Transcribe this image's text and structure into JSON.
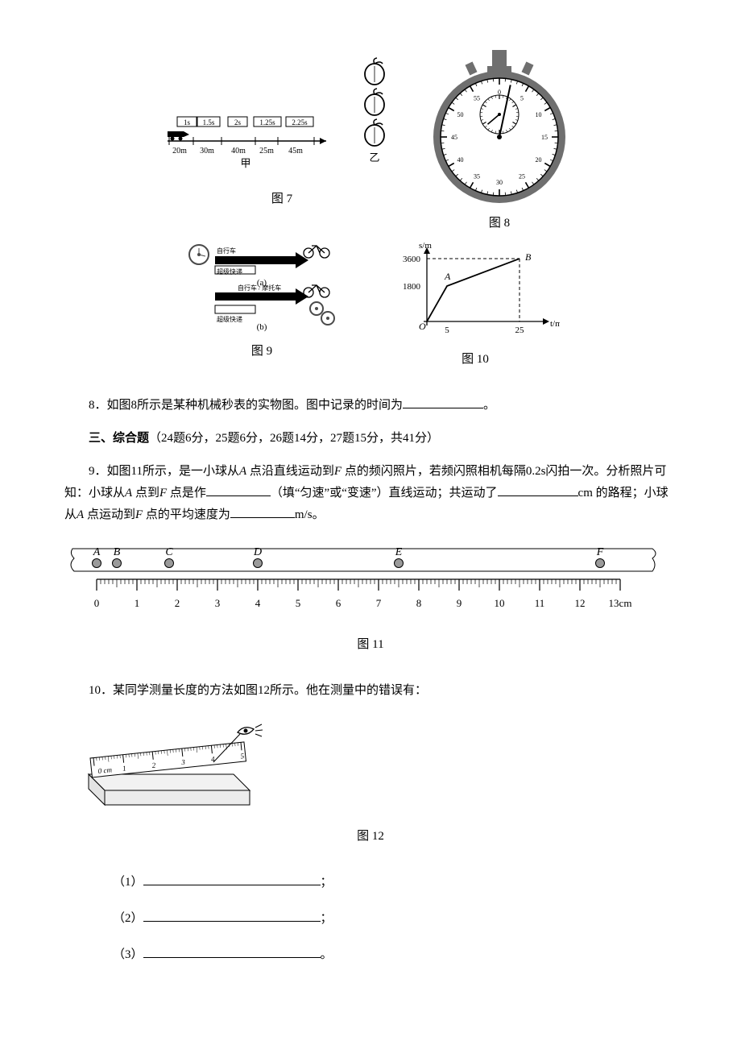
{
  "fig7": {
    "caption": "图 7",
    "times": [
      "1s",
      "1.5s",
      "2s",
      "1.25s",
      "2.25s"
    ],
    "distances": [
      "20m",
      "30m",
      "40m",
      "25m",
      "45m"
    ],
    "labels": {
      "left": "甲",
      "right": "乙"
    },
    "car_color": "#000000",
    "line_color": "#000000",
    "fontsize": 9
  },
  "fig8": {
    "caption": "图 8",
    "dial": {
      "outer_major_ticks": 60,
      "inner_major_ticks": 30,
      "face_color": "#ffffff",
      "case_color": "#6f6f6f",
      "hand_color": "#000000",
      "tick_color": "#000000",
      "second_hand_angle_deg": 12,
      "minute_hand_angle_deg": -130,
      "labels_outer": [
        "0",
        "5",
        "10",
        "15",
        "20",
        "25",
        "30",
        "35",
        "40",
        "45",
        "50",
        "55"
      ],
      "labels_inner": [
        "0",
        "5",
        "10",
        "15",
        "20",
        "25"
      ]
    }
  },
  "fig9": {
    "caption": "图 9",
    "rows": [
      {
        "left_label": "超级快递",
        "right_label": "自行车",
        "sub": "(a)"
      },
      {
        "left_label": "超级快递",
        "right_label": "自行车 / 摩托车",
        "sub": "(b)"
      }
    ],
    "colors": {
      "bar": "#000000",
      "gear": "#4a4a4a",
      "text": "#000000"
    }
  },
  "fig10": {
    "caption": "图 10",
    "type": "line",
    "axes": {
      "x_label": "t/min",
      "y_label": "s/m"
    },
    "xlim": [
      0,
      28
    ],
    "ylim": [
      0,
      4200
    ],
    "segments": [
      {
        "from": [
          0,
          0
        ],
        "to": [
          5,
          1800
        ]
      },
      {
        "from": [
          5,
          1800
        ],
        "to": [
          25,
          3600
        ]
      }
    ],
    "points": {
      "A": [
        5,
        1800
      ],
      "B": [
        25,
        3600
      ]
    },
    "yticks": [
      1800,
      3600
    ],
    "xticks": [
      5,
      25
    ],
    "dash_to_B": true,
    "line_color": "#000000",
    "axis_color": "#000000",
    "fontsize": 11
  },
  "q8": {
    "text_before": "8．如图8所示是某种机械秒表的实物图。图中记录的时间为",
    "text_after": "。"
  },
  "section3": {
    "title": "三、综合题",
    "paren": "（24题6分，25题6分，26题14分，27题15分，共41分）"
  },
  "q9": {
    "prefix": "9．如图11所示，是一小球从",
    "a": "A",
    "mid1": " 点沿直线运动到",
    "f": "F",
    "mid2": " 点的频闪照片，若频闪照相机每隔0.2s闪拍一次。分析照片可知：小球从",
    "mid3": " 点到",
    "mid4": " 点是作",
    "fill1_hint": "（填“匀速”或“变速”）直线运动；共运动了",
    "unit1": "cm 的路程；小球从",
    "mid5": " 点运动到",
    "mid6": " 点的平均速度为",
    "unit2": "m/s。"
  },
  "fig11": {
    "caption": "图 11",
    "type": "ruler_strobe",
    "points": {
      "A": 0.0,
      "B": 0.5,
      "C": 1.8,
      "D": 4.0,
      "E": 7.5,
      "F": 12.5
    },
    "ruler": {
      "min": 0,
      "max": 13,
      "unit_label": "13cm",
      "major_tick_cm": 1,
      "minor_per_major": 10
    },
    "colors": {
      "ball_fill": "#9a9a9a",
      "ball_stroke": "#000000",
      "tick": "#000000",
      "label": "#000000"
    },
    "font": {
      "point_label_size": 14,
      "tick_label_size": 13
    }
  },
  "q10": {
    "text": "10．某同学测量长度的方法如图12所示。他在测量中的错误有："
  },
  "fig12": {
    "caption": "图 12",
    "ruler": {
      "label": "0 cm 1",
      "ticks": [
        "0",
        "1",
        "2",
        "3",
        "4",
        "5"
      ],
      "tilt_deg": -6
    },
    "colors": {
      "block": "#f2f2f2",
      "ruler_face": "#ffffff",
      "line": "#000000"
    }
  },
  "answers": {
    "items": [
      {
        "num": "（1）",
        "tail": "；"
      },
      {
        "num": "（2）",
        "tail": "；"
      },
      {
        "num": "（3）",
        "tail": "。"
      }
    ]
  }
}
